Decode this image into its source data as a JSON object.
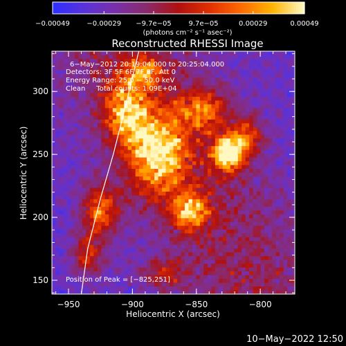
{
  "colors": {
    "background": "#000000",
    "foreground": "#ffffff",
    "colormap": [
      "#2f2fff",
      "#5a32d8",
      "#7a2fa8",
      "#8a2a6a",
      "#b01010",
      "#e03000",
      "#ff6a00",
      "#ffb300",
      "#fff8c0"
    ]
  },
  "chart_data": {
    "type": "heatmap",
    "title": "Reconstructed RHESSI Image",
    "xlabel": "Heliocentric X (arcsec)",
    "ylabel": "Heliocentric Y (arcsec)",
    "xlim": [
      -963,
      -773
    ],
    "ylim": [
      139,
      332
    ],
    "xticks": [
      -950,
      -900,
      -850,
      -800
    ],
    "xtick_labels": [
      "−950",
      "−900",
      "−850",
      "−800"
    ],
    "yticks": [
      150,
      200,
      250,
      300
    ],
    "ytick_labels": [
      "150",
      "200",
      "250",
      "300"
    ],
    "colorbar": {
      "range": [
        -0.00049,
        0.00049
      ],
      "ticks": [
        -0.00049,
        -0.00029,
        -9.7e-05,
        9.7e-05,
        0.00029,
        0.00049
      ],
      "tick_labels": [
        "−0.00049",
        "−0.00029",
        "−9.7e−05",
        "9.7e−05",
        "0.00029",
        "0.00049"
      ],
      "units_label": "(photons cm⁻² s⁻¹ asec⁻²)"
    },
    "annotations": {
      "time_range": "6−May−2012 20:19:04.000 to 20:25:04.000",
      "detectors": "Detectors: 3F 5F 6F 7F 8F, Att 0",
      "energy": "Energy Range: 25.0 − 50.0 keV",
      "clean": "Clean     Total counts: 1.09E+04",
      "peak": "Position of Peak = [−825,251]"
    },
    "peak_position": [
      -825,
      251
    ],
    "sources": [
      {
        "x": -825,
        "y": 251,
        "amp": 1.0,
        "sx": 8,
        "sy": 9
      },
      {
        "x": -880,
        "y": 250,
        "amp": 0.7,
        "sx": 16,
        "sy": 22
      },
      {
        "x": -905,
        "y": 285,
        "amp": 0.6,
        "sx": 12,
        "sy": 18
      },
      {
        "x": -855,
        "y": 205,
        "amp": 0.6,
        "sx": 10,
        "sy": 10
      },
      {
        "x": -845,
        "y": 285,
        "amp": 0.45,
        "sx": 14,
        "sy": 12
      },
      {
        "x": -925,
        "y": 205,
        "amp": 0.55,
        "sx": 10,
        "sy": 14
      },
      {
        "x": -935,
        "y": 170,
        "amp": 0.4,
        "sx": 8,
        "sy": 12
      },
      {
        "x": -810,
        "y": 265,
        "amp": 0.45,
        "sx": 8,
        "sy": 10
      },
      {
        "x": -890,
        "y": 315,
        "amp": 0.45,
        "sx": 10,
        "sy": 8
      },
      {
        "x": -875,
        "y": 155,
        "amp": 0.3,
        "sx": 12,
        "sy": 8
      }
    ],
    "limb_curve": [
      [
        -940,
        139
      ],
      [
        -935,
        175
      ],
      [
        -925,
        215
      ],
      [
        -915,
        250
      ],
      [
        -905,
        290
      ],
      [
        -895,
        332
      ]
    ]
  },
  "footer": {
    "date": "10−May−2022 12:50"
  }
}
